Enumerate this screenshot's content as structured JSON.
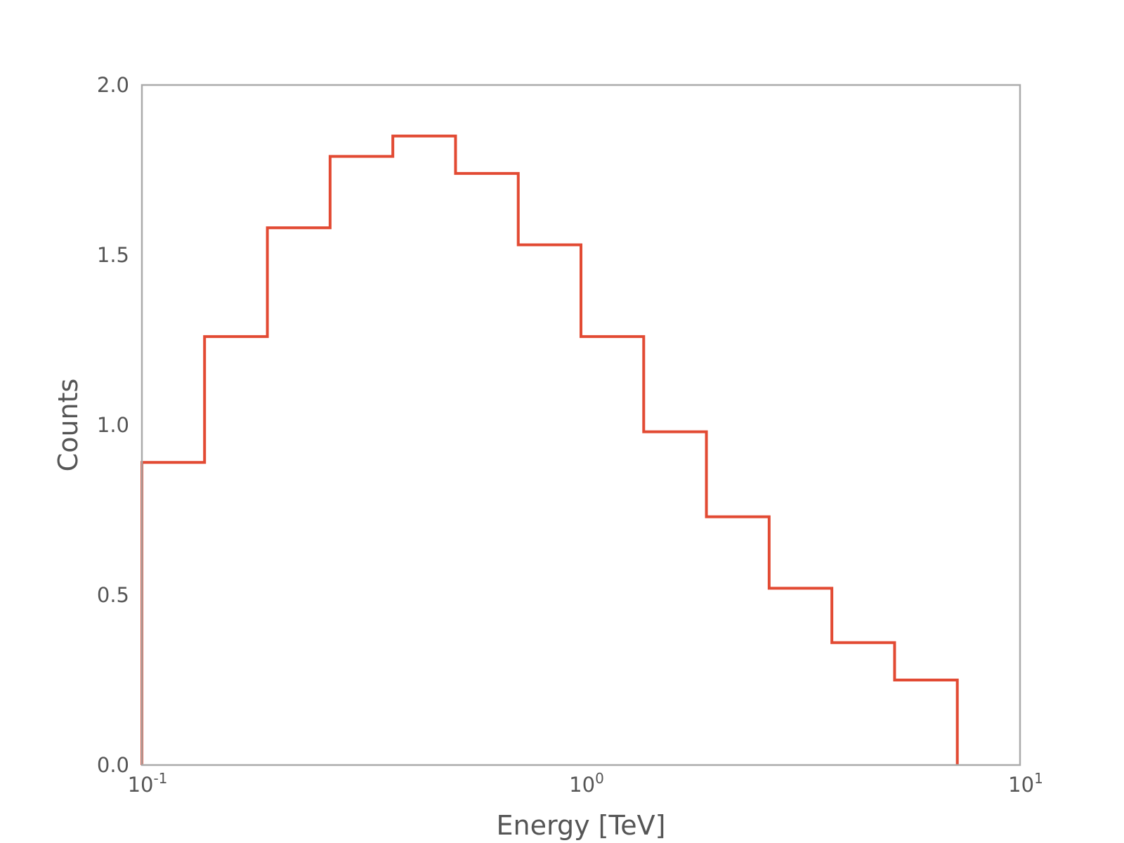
{
  "chart_data": {
    "type": "step",
    "title": "",
    "xlabel": "Energy [TeV]",
    "ylabel": "Counts",
    "xscale": "log",
    "xlim": [
      0.1,
      10
    ],
    "ylim": [
      0,
      2.0
    ],
    "grid": false,
    "legend": "none",
    "x_ticks": [
      {
        "base": "10",
        "exp": "-1",
        "value": 0.1
      },
      {
        "base": "10",
        "exp": "0",
        "value": 1
      },
      {
        "base": "10",
        "exp": "1",
        "value": 10
      }
    ],
    "y_ticks": [
      "0.0",
      "0.5",
      "1.0",
      "1.5",
      "2.0"
    ],
    "bin_edges": [
      0.1,
      0.1389,
      0.1931,
      0.2683,
      0.3728,
      0.518,
      0.7197,
      1.0,
      1.3895,
      1.9307,
      2.6827,
      3.7276,
      5.1795,
      7.1969
    ],
    "counts": [
      0.89,
      1.26,
      1.58,
      1.79,
      1.85,
      1.74,
      1.53,
      1.26,
      0.98,
      0.73,
      0.52,
      0.36,
      0.25
    ],
    "line_color": "#e24a33",
    "frame_color": "#aaaaaa",
    "text_color": "#555555"
  }
}
